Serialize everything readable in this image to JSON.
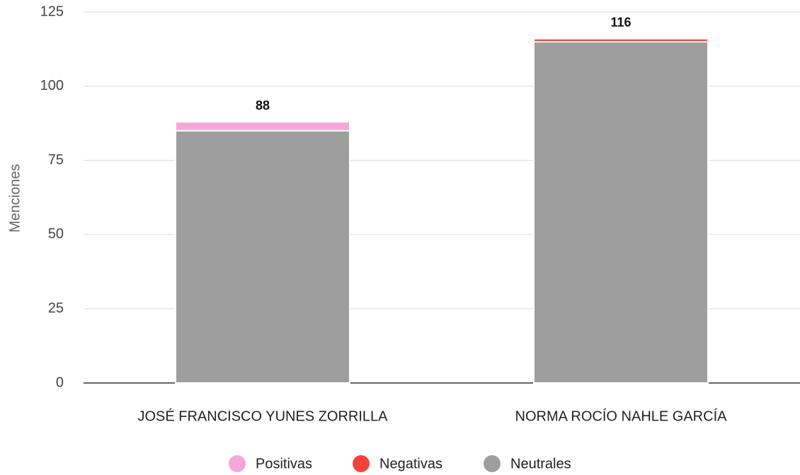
{
  "chart_data": {
    "type": "stacked_bar",
    "y_label": "Menciones",
    "categories": [
      "JOSÉ FRANCISCO YUNES ZORRILLA",
      "NORMA ROCÍO NAHLE GARCÍA"
    ],
    "series": [
      {
        "name": "Neutrales",
        "color": "#9e9e9e",
        "values": [
          85,
          115
        ]
      },
      {
        "name": "Negativas",
        "color": "#f44336",
        "values": [
          0,
          1
        ]
      },
      {
        "name": "Positivas",
        "color": "#f8a5d9",
        "values": [
          3,
          0
        ]
      }
    ],
    "legend_order": [
      2,
      1,
      0
    ],
    "totals": [
      88,
      116
    ],
    "ylim": [
      0,
      125
    ],
    "yticks": [
      0,
      25,
      50,
      75,
      100,
      125
    ],
    "grid": true,
    "legend": "bottom"
  }
}
